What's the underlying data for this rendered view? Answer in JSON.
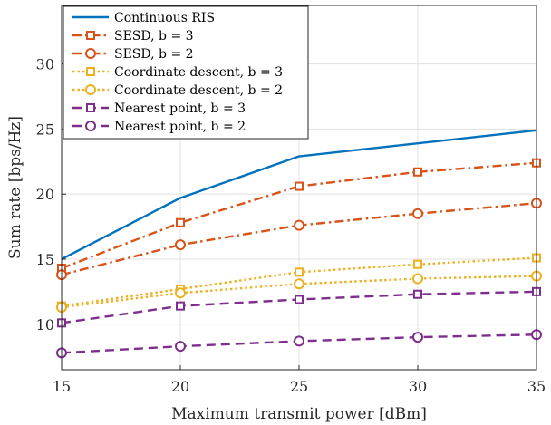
{
  "chart_data": {
    "type": "line",
    "xlabel": "Maximum transmit power [dBm]",
    "ylabel": "Sum rate [bps/Hz]",
    "xlim": [
      15,
      35
    ],
    "ylim": [
      6.5,
      34.5
    ],
    "xticks": [
      15,
      20,
      25,
      30,
      35
    ],
    "yticks": [
      10,
      15,
      20,
      25,
      30
    ],
    "grid": true,
    "legend_position": "top-left",
    "x": [
      15,
      20,
      25,
      30,
      35
    ],
    "series": [
      {
        "name": "Continuous RIS",
        "values": [
          15.0,
          19.7,
          22.9,
          23.9,
          24.9
        ],
        "color": "#0072BD",
        "line": "solid",
        "marker": "none"
      },
      {
        "name": "SESD, b = 3",
        "values": [
          14.3,
          17.8,
          20.6,
          21.7,
          22.4
        ],
        "color": "#D95319",
        "line": "dashdot",
        "marker": "square"
      },
      {
        "name": "SESD, b = 2",
        "values": [
          13.8,
          16.1,
          17.6,
          18.5,
          19.3
        ],
        "color": "#D95319",
        "line": "dashdot",
        "marker": "circle"
      },
      {
        "name": "Coordinate descent, b = 3",
        "values": [
          11.4,
          12.7,
          14.0,
          14.6,
          15.1
        ],
        "color": "#EDB120",
        "line": "dotted",
        "marker": "square"
      },
      {
        "name": "Coordinate descent, b = 2",
        "values": [
          11.3,
          12.4,
          13.1,
          13.5,
          13.7
        ],
        "color": "#EDB120",
        "line": "dotted",
        "marker": "circle"
      },
      {
        "name": "Nearest point, b = 3",
        "values": [
          10.1,
          11.4,
          11.9,
          12.3,
          12.5
        ],
        "color": "#7E2F8E",
        "line": "dashed",
        "marker": "square"
      },
      {
        "name": "Nearest point, b = 2",
        "values": [
          7.8,
          8.3,
          8.7,
          9.0,
          9.2
        ],
        "color": "#7E2F8E",
        "line": "dashed",
        "marker": "circle"
      }
    ],
    "colors": {
      "axis": "#262626",
      "grid": "#e0e0e0"
    }
  }
}
